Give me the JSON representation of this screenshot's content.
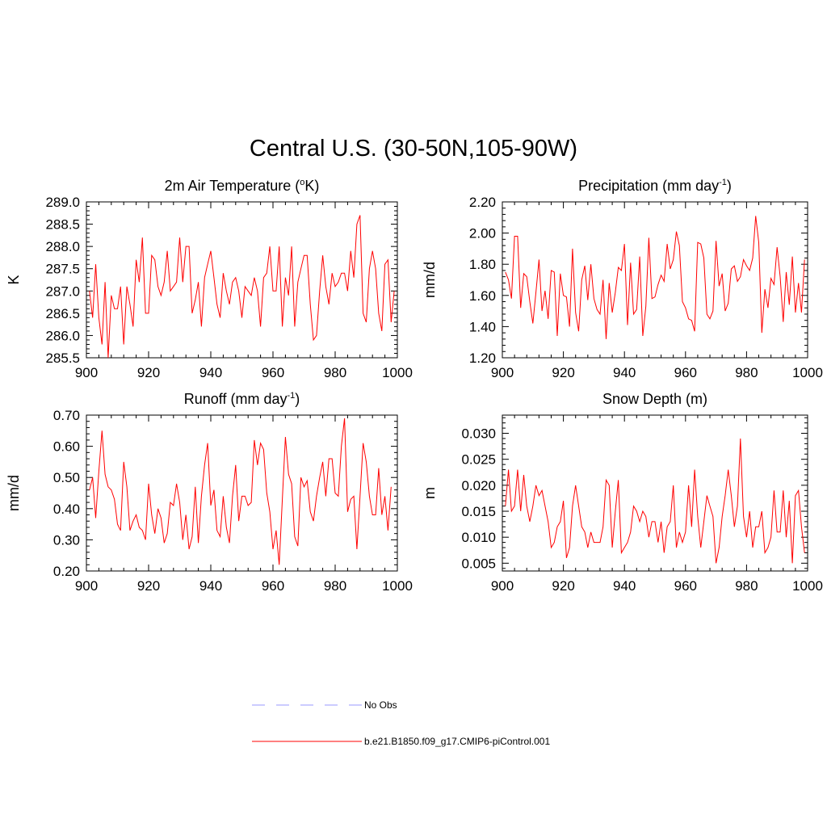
{
  "title": "Central U.S. (30-50N,105-90W)",
  "legend": [
    {
      "label": "No Obs",
      "color": "#9999ff",
      "style": "dashed"
    },
    {
      "label": "b.e21.B1850.f09_g17.CMIP6-piControl.001",
      "color": "#ff0000",
      "style": "solid"
    }
  ],
  "chart_data": [
    {
      "type": "line",
      "title": "2m Air Temperature (",
      "title_sup": "o",
      "title_tail": "K)",
      "ylabel": "K",
      "xlim": [
        900,
        1000
      ],
      "ylim": [
        285.5,
        289.0
      ],
      "xticks": [
        900,
        920,
        940,
        960,
        980,
        1000
      ],
      "yticks": [
        285.5,
        286.0,
        286.5,
        287.0,
        287.5,
        288.0,
        288.5,
        289.0
      ],
      "ytick_labels": [
        "285.5",
        "286.0",
        "286.5",
        "287.0",
        "287.5",
        "288.0",
        "288.5",
        "289.0"
      ],
      "series": [
        {
          "name": "b.e21.B1850.f09_g17.CMIP6-piControl.001",
          "color": "#ff0000",
          "x_start": 901,
          "values": [
            287.0,
            286.4,
            287.6,
            286.4,
            285.8,
            287.2,
            285.5,
            286.9,
            286.6,
            286.6,
            287.1,
            285.8,
            287.1,
            286.7,
            286.2,
            287.7,
            287.2,
            288.2,
            286.5,
            286.5,
            287.8,
            287.7,
            287.1,
            286.9,
            287.2,
            287.9,
            287.0,
            287.1,
            287.2,
            288.2,
            287.2,
            288.0,
            288.0,
            286.5,
            286.8,
            287.2,
            286.2,
            287.3,
            287.6,
            287.9,
            287.3,
            286.7,
            286.4,
            287.4,
            287.0,
            286.7,
            287.2,
            287.3,
            287.0,
            286.4,
            287.1,
            287.0,
            286.9,
            287.3,
            287.0,
            286.2,
            287.3,
            287.4,
            288.0,
            287.0,
            287.0,
            288.0,
            286.2,
            287.3,
            286.9,
            288.0,
            286.2,
            287.2,
            287.5,
            287.8,
            287.8,
            286.7,
            285.9,
            286.0,
            287.0,
            287.8,
            287.1,
            286.7,
            287.4,
            287.1,
            287.2,
            287.4,
            287.4,
            287.0,
            287.9,
            287.3,
            288.5,
            288.7,
            286.5,
            286.3,
            287.5,
            287.9,
            287.5,
            286.5,
            286.1,
            287.6,
            287.7,
            286.3,
            287.0
          ]
        }
      ]
    },
    {
      "type": "line",
      "title": "Precipitation (mm day",
      "title_sup": "-1",
      "title_tail": ")",
      "ylabel": "mm/d",
      "xlim": [
        900,
        1000
      ],
      "ylim": [
        1.2,
        2.2
      ],
      "xticks": [
        900,
        920,
        940,
        960,
        980,
        1000
      ],
      "yticks": [
        1.2,
        1.4,
        1.6,
        1.8,
        2.0,
        2.2
      ],
      "ytick_labels": [
        "1.20",
        "1.40",
        "1.60",
        "1.80",
        "2.00",
        "2.20"
      ],
      "series": [
        {
          "name": "b.e21.B1850.f09_g17.CMIP6-piControl.001",
          "color": "#ff0000",
          "x_start": 901,
          "values": [
            1.75,
            1.7,
            1.58,
            1.98,
            1.98,
            1.52,
            1.74,
            1.72,
            1.56,
            1.42,
            1.62,
            1.83,
            1.5,
            1.63,
            1.45,
            1.76,
            1.75,
            1.34,
            1.74,
            1.6,
            1.59,
            1.4,
            1.9,
            1.49,
            1.37,
            1.7,
            1.79,
            1.57,
            1.8,
            1.58,
            1.51,
            1.48,
            1.7,
            1.32,
            1.68,
            1.49,
            1.62,
            1.78,
            1.76,
            1.93,
            1.41,
            1.81,
            1.48,
            1.51,
            1.85,
            1.34,
            1.53,
            1.97,
            1.58,
            1.59,
            1.67,
            1.73,
            1.69,
            1.93,
            1.77,
            1.83,
            2.01,
            1.92,
            1.56,
            1.52,
            1.45,
            1.44,
            1.37,
            1.94,
            1.93,
            1.84,
            1.48,
            1.45,
            1.5,
            1.95,
            1.66,
            1.74,
            1.5,
            1.55,
            1.77,
            1.79,
            1.69,
            1.72,
            1.83,
            1.79,
            1.76,
            1.84,
            2.11,
            1.94,
            1.36,
            1.64,
            1.52,
            1.71,
            1.67,
            1.91,
            1.72,
            1.43,
            1.75,
            1.54,
            1.85,
            1.49,
            1.68,
            1.49,
            1.83
          ]
        }
      ]
    },
    {
      "type": "line",
      "title": "Runoff (mm day",
      "title_sup": "-1",
      "title_tail": ")",
      "ylabel": "mm/d",
      "xlim": [
        900,
        1000
      ],
      "ylim": [
        0.2,
        0.7
      ],
      "xticks": [
        900,
        920,
        940,
        960,
        980,
        1000
      ],
      "yticks": [
        0.2,
        0.3,
        0.4,
        0.5,
        0.6,
        0.7
      ],
      "ytick_labels": [
        "0.20",
        "0.30",
        "0.40",
        "0.50",
        "0.60",
        "0.70"
      ],
      "series": [
        {
          "name": "b.e21.B1850.f09_g17.CMIP6-piControl.001",
          "color": "#ff0000",
          "x_start": 901,
          "values": [
            0.46,
            0.5,
            0.37,
            0.52,
            0.65,
            0.51,
            0.47,
            0.46,
            0.43,
            0.35,
            0.33,
            0.55,
            0.47,
            0.33,
            0.36,
            0.38,
            0.34,
            0.33,
            0.3,
            0.48,
            0.38,
            0.32,
            0.4,
            0.37,
            0.29,
            0.32,
            0.42,
            0.41,
            0.48,
            0.42,
            0.3,
            0.38,
            0.27,
            0.31,
            0.47,
            0.29,
            0.44,
            0.54,
            0.61,
            0.41,
            0.46,
            0.33,
            0.31,
            0.44,
            0.34,
            0.29,
            0.44,
            0.54,
            0.36,
            0.44,
            0.44,
            0.41,
            0.42,
            0.62,
            0.54,
            0.61,
            0.59,
            0.45,
            0.39,
            0.27,
            0.33,
            0.22,
            0.43,
            0.63,
            0.51,
            0.48,
            0.31,
            0.28,
            0.5,
            0.47,
            0.49,
            0.39,
            0.36,
            0.44,
            0.5,
            0.55,
            0.44,
            0.56,
            0.56,
            0.45,
            0.44,
            0.6,
            0.69,
            0.39,
            0.43,
            0.44,
            0.27,
            0.44,
            0.61,
            0.55,
            0.44,
            0.38,
            0.38,
            0.53,
            0.38,
            0.44,
            0.33,
            0.47
          ]
        }
      ]
    },
    {
      "type": "line",
      "title": "Snow Depth (m)",
      "title_sup": "",
      "title_tail": "",
      "ylabel": "m",
      "xlim": [
        900,
        1000
      ],
      "ylim": [
        0.0035,
        0.0335
      ],
      "xticks": [
        900,
        920,
        940,
        960,
        980,
        1000
      ],
      "yticks": [
        0.005,
        0.01,
        0.015,
        0.02,
        0.025,
        0.03
      ],
      "ytick_labels": [
        "0.005",
        "0.010",
        "0.015",
        "0.020",
        "0.025",
        "0.030"
      ],
      "series": [
        {
          "name": "b.e21.B1850.f09_g17.CMIP6-piControl.001",
          "color": "#ff0000",
          "x_start": 901,
          "values": [
            0.016,
            0.023,
            0.015,
            0.016,
            0.023,
            0.015,
            0.022,
            0.016,
            0.013,
            0.016,
            0.02,
            0.018,
            0.019,
            0.016,
            0.013,
            0.008,
            0.009,
            0.012,
            0.013,
            0.017,
            0.006,
            0.008,
            0.016,
            0.02,
            0.016,
            0.012,
            0.011,
            0.008,
            0.011,
            0.009,
            0.009,
            0.009,
            0.012,
            0.021,
            0.02,
            0.008,
            0.015,
            0.021,
            0.007,
            0.008,
            0.009,
            0.011,
            0.016,
            0.015,
            0.013,
            0.015,
            0.014,
            0.01,
            0.013,
            0.013,
            0.009,
            0.013,
            0.007,
            0.012,
            0.013,
            0.02,
            0.008,
            0.011,
            0.009,
            0.011,
            0.02,
            0.012,
            0.023,
            0.014,
            0.008,
            0.013,
            0.018,
            0.016,
            0.014,
            0.005,
            0.008,
            0.014,
            0.018,
            0.023,
            0.018,
            0.012,
            0.016,
            0.029,
            0.014,
            0.01,
            0.015,
            0.008,
            0.012,
            0.012,
            0.015,
            0.007,
            0.008,
            0.01,
            0.019,
            0.011,
            0.011,
            0.019,
            0.01,
            0.017,
            0.005,
            0.018,
            0.019,
            0.012,
            0.007
          ]
        }
      ]
    }
  ]
}
